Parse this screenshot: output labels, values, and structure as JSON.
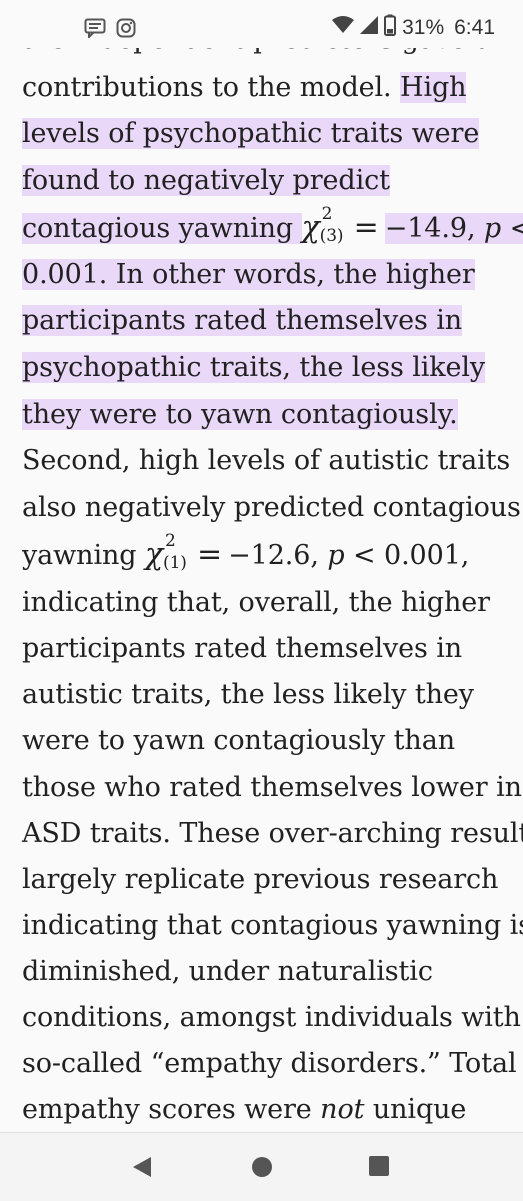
{
  "status_bar": {
    "left_icons": [
      "message-icon",
      "instagram-icon"
    ],
    "battery": "31%",
    "time": "6:41"
  },
  "article": {
    "top_partial": "the independent predictors gave unique",
    "lines": [
      {
        "pre": "contributions to the model. ",
        "hl": "High"
      },
      {
        "hl": "levels of psychopathic traits were"
      },
      {
        "hl": "found to negatively predict"
      },
      {
        "hl_a": "contagious yawning ",
        "chi": "χ",
        "sup": "2",
        "sub": "(3)",
        "eq": "=",
        "hl_b": "−14.9, ",
        "p": "p",
        "hl_c": " <"
      },
      {
        "hl": "0.001. In other words, the higher"
      },
      {
        "hl": "participants rated themselves in"
      },
      {
        "hl": "psychopathic traits, the less likely"
      },
      {
        "hl": "they were to yawn contagiously."
      },
      {
        "text": "Second, high levels of autistic traits"
      },
      {
        "text": "also negatively predicted contagious"
      },
      {
        "text_a": "yawning ",
        "chi": "χ",
        "sup": "2",
        "sub": "(1)",
        "eq": "=",
        "text_b": "−12.6, ",
        "p": "p",
        "text_c": " < 0.001,"
      },
      {
        "text": "indicating that, overall, the higher"
      },
      {
        "text": "participants rated themselves in"
      },
      {
        "text": "autistic traits, the less likely they"
      },
      {
        "text": "were to yawn contagiously than"
      },
      {
        "text": "those who rated themselves lower in"
      },
      {
        "text": "ASD traits. These over-arching results"
      },
      {
        "text": "largely replicate previous research"
      },
      {
        "text": "indicating that contagious yawning is"
      },
      {
        "text": "diminished, under naturalistic"
      },
      {
        "text": "conditions, amongst individuals with"
      },
      {
        "text": "so-called “empathy disorders.” Total"
      },
      {
        "text_a": "empathy scores were ",
        "em": "not",
        "text_b": " unique"
      }
    ]
  },
  "nav_bar": {
    "buttons": [
      "back",
      "home",
      "recents"
    ]
  },
  "colors": {
    "highlight": "#ead8f9",
    "text": "#212121",
    "background": "#fafafa"
  }
}
